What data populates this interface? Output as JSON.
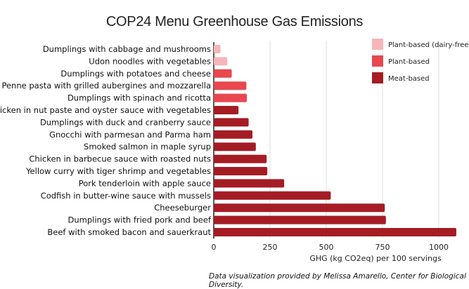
{
  "chart_data": {
    "type": "bar",
    "orientation": "horizontal",
    "title": "COP24 Menu Greenhouse Gas Emissions",
    "xlabel": "GHG (kg CO2eq) per 100 servings",
    "ylabel": "",
    "xlim": [
      0,
      1100
    ],
    "xticks": [
      0,
      250,
      500,
      750,
      1000
    ],
    "grid": true,
    "legend_position": "top-right",
    "legend": [
      {
        "name": "Plant-based (dairy-free)",
        "color": "#f7b6b9"
      },
      {
        "name": "Plant-based",
        "color": "#e8474f"
      },
      {
        "name": "Meat-based",
        "color": "#a51c24"
      }
    ],
    "bars": [
      {
        "label": "Dumplings with cabbage and mushrooms",
        "value": 30,
        "group": 0
      },
      {
        "label": "Udon noodles with vegetables",
        "value": 60,
        "group": 0
      },
      {
        "label": "Dumplings with potatoes and cheese",
        "value": 80,
        "group": 1
      },
      {
        "label": "Penne pasta with grilled aubergines and mozzarella",
        "value": 145,
        "group": 1
      },
      {
        "label": "Dumplings with spinach and ricotta",
        "value": 147,
        "group": 1
      },
      {
        "label": "Chicken in nut paste and oyster sauce with vegetables",
        "value": 110,
        "group": 2
      },
      {
        "label": "Dumplings with duck and cranberry sauce",
        "value": 155,
        "group": 2
      },
      {
        "label": "Gnocchi with parmesan and Parma ham",
        "value": 172,
        "group": 2
      },
      {
        "label": "Smoked salmon in maple syrup",
        "value": 187,
        "group": 2
      },
      {
        "label": "Chicken in barbecue sauce with roasted nuts",
        "value": 235,
        "group": 2
      },
      {
        "label": "Yellow curry with tiger shrimp and vegetables",
        "value": 238,
        "group": 2
      },
      {
        "label": "Pork tenderloin with apple sauce",
        "value": 313,
        "group": 2
      },
      {
        "label": "Codfish in butter-wine sauce with mussels",
        "value": 520,
        "group": 2
      },
      {
        "label": "Cheeseburger",
        "value": 760,
        "group": 2
      },
      {
        "label": "Dumplings with fried pork and beef",
        "value": 765,
        "group": 2
      },
      {
        "label": "Beef with smoked bacon and sauerkraut",
        "value": 1078,
        "group": 2
      }
    ]
  },
  "credit": "Data visualization provided by Melissa Amarello, Center for Biological Diversity."
}
